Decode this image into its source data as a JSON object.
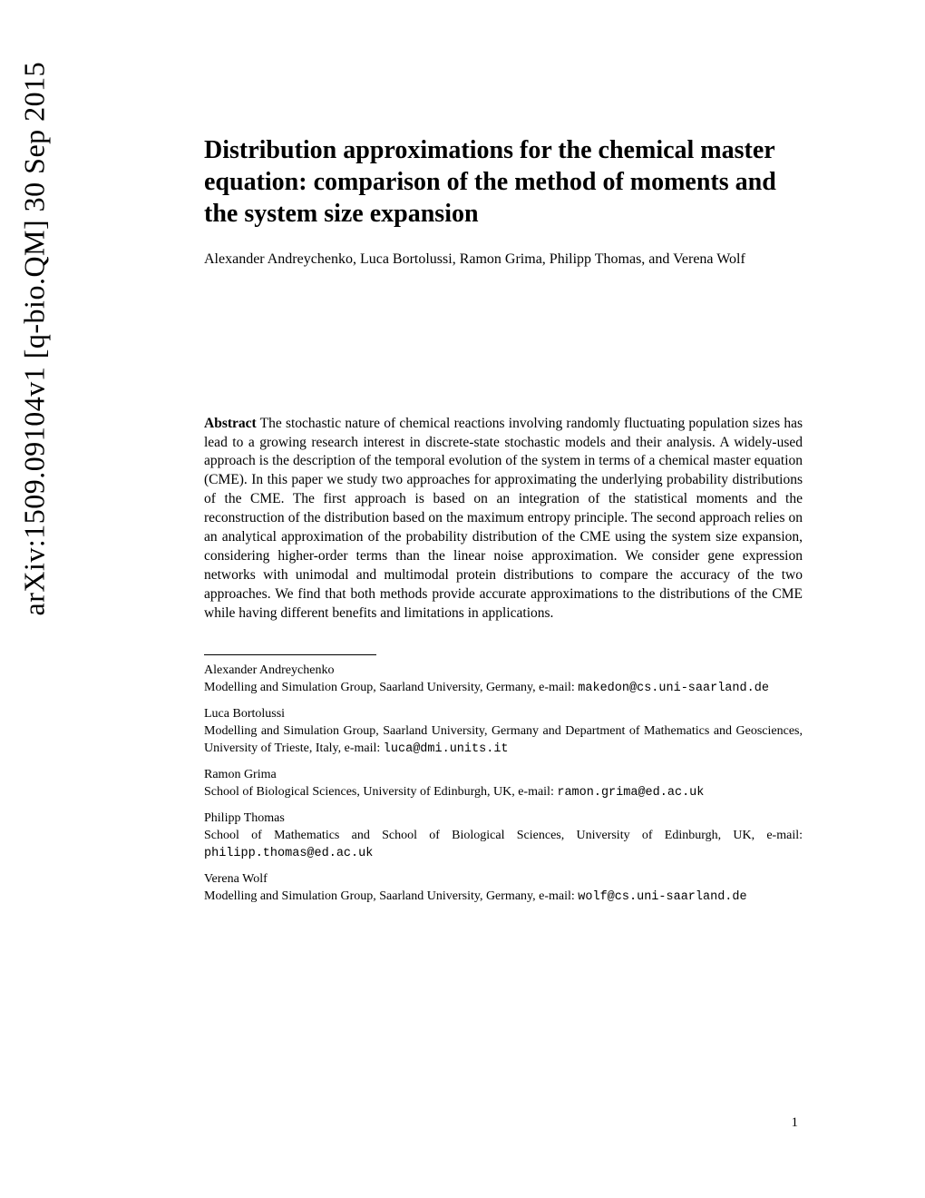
{
  "arxiv_watermark": "arXiv:1509.09104v1  [q-bio.QM]  30 Sep 2015",
  "title": "Distribution approximations for the chemical master equation: comparison of the method of moments and the system size expansion",
  "authors": "Alexander Andreychenko, Luca Bortolussi, Ramon Grima, Philipp Thomas, and Verena Wolf",
  "abstract_label": "Abstract",
  "abstract_text": " The stochastic nature of chemical reactions involving randomly fluctuating population sizes has lead to a growing research interest in discrete-state stochastic models and their analysis. A widely-used approach is the description of the temporal evolution of the system in terms of a chemical master equation (CME). In this paper we study two approaches for approximating the underlying probability distributions of the CME. The first approach is based on an integration of the statistical moments and the reconstruction of the distribution based on the maximum entropy principle. The second approach relies on an analytical approximation of the probability distribution of the CME using the system size expansion, considering higher-order terms than the linear noise approximation. We consider gene expression networks with unimodal and multimodal protein distributions to compare the accuracy of the two approaches. We find that both methods provide accurate approximations to the distributions of the CME while having different benefits and limitations in applications.",
  "affiliations": [
    {
      "name": "Alexander Andreychenko",
      "text": "Modelling and Simulation Group, Saarland University, Germany, e-mail: ",
      "email": "makedon@cs.uni-saarland.de"
    },
    {
      "name": "Luca Bortolussi",
      "text": "Modelling and Simulation Group, Saarland University, Germany and Department of Mathematics and Geosciences, University of Trieste, Italy, e-mail: ",
      "email": "luca@dmi.units.it"
    },
    {
      "name": "Ramon Grima",
      "text": "School of Biological Sciences, University of Edinburgh, UK, e-mail: ",
      "email": "ramon.grima@ed.ac.uk"
    },
    {
      "name": "Philipp Thomas",
      "text": "School of Mathematics and School of Biological Sciences, University of Edinburgh, UK, e-mail: ",
      "email": "philipp.thomas@ed.ac.uk"
    },
    {
      "name": "Verena Wolf",
      "text": "Modelling and Simulation Group, Saarland University, Germany, e-mail: ",
      "email": "wolf@cs.uni-saarland.de"
    }
  ],
  "page_number": "1"
}
